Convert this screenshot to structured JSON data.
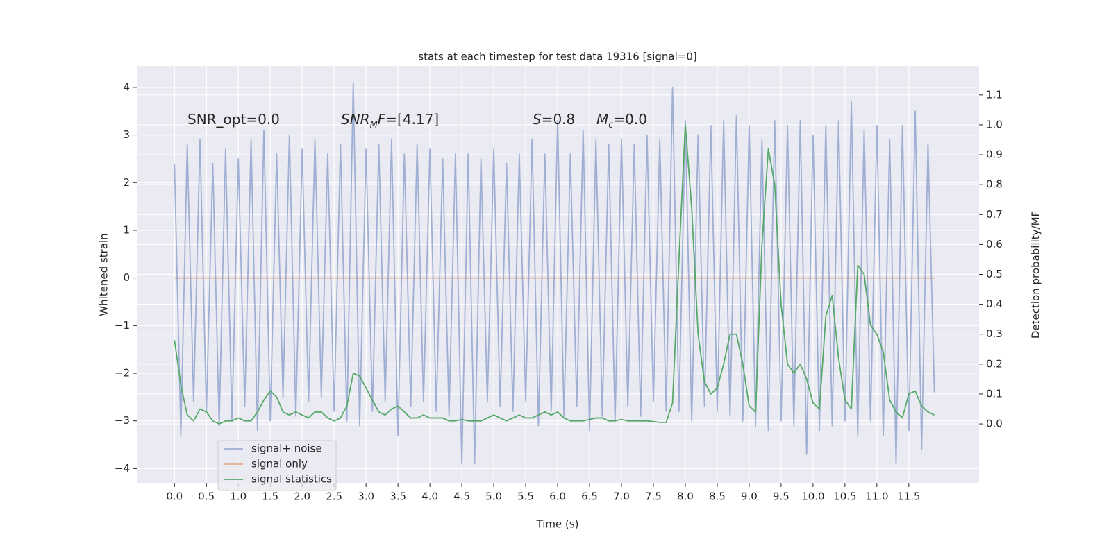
{
  "chart_data": {
    "type": "line",
    "title": "stats at each timestep for test data 19316 [signal=0]",
    "xlabel": "Time (s)",
    "ylabel": "Whitened strain",
    "y2label": "Detection probability/MF",
    "annotations": [
      [
        {
          "text": "SNR_opt=0.0"
        }
      ],
      [
        {
          "text": "SNR",
          "italic": true
        },
        {
          "text": "M",
          "italic": true,
          "sub": true
        },
        {
          "text": "F",
          "italic": true
        },
        {
          "text": "=[4.17]"
        }
      ],
      [
        {
          "text": "S",
          "italic": true
        },
        {
          "text": "=0.8"
        }
      ],
      [
        {
          "text": "M",
          "italic": true
        },
        {
          "text": "c",
          "italic": true,
          "sub": true
        },
        {
          "text": "=0.0"
        }
      ]
    ],
    "x": [
      0.0,
      0.1,
      0.2,
      0.3,
      0.4,
      0.5,
      0.6,
      0.7,
      0.8,
      0.9,
      1.0,
      1.1,
      1.2,
      1.3,
      1.4,
      1.5,
      1.6,
      1.7,
      1.8,
      1.9,
      2.0,
      2.1,
      2.2,
      2.3,
      2.4,
      2.5,
      2.6,
      2.7,
      2.8,
      2.9,
      3.0,
      3.1,
      3.2,
      3.3,
      3.4,
      3.5,
      3.6,
      3.7,
      3.8,
      3.9,
      4.0,
      4.1,
      4.2,
      4.3,
      4.4,
      4.5,
      4.6,
      4.7,
      4.8,
      4.9,
      5.0,
      5.1,
      5.2,
      5.3,
      5.4,
      5.5,
      5.6,
      5.7,
      5.8,
      5.9,
      6.0,
      6.1,
      6.2,
      6.3,
      6.4,
      6.5,
      6.6,
      6.7,
      6.8,
      6.9,
      7.0,
      7.1,
      7.2,
      7.3,
      7.4,
      7.5,
      7.6,
      7.7,
      7.8,
      7.9,
      8.0,
      8.1,
      8.2,
      8.3,
      8.4,
      8.5,
      8.6,
      8.7,
      8.8,
      8.9,
      9.0,
      9.1,
      9.2,
      9.3,
      9.4,
      9.5,
      9.6,
      9.7,
      9.8,
      9.9,
      10.0,
      10.1,
      10.2,
      10.3,
      10.4,
      10.5,
      10.6,
      10.7,
      10.8,
      10.9,
      11.0,
      11.1,
      11.2,
      11.3,
      11.4,
      11.5,
      11.6,
      11.7,
      11.8,
      11.9
    ],
    "series": [
      {
        "name": "signal+ noise",
        "color": "#8c9fca",
        "opacity": 0.8,
        "values": [
          2.4,
          -3.3,
          2.8,
          -2.6,
          2.9,
          -2.8,
          2.4,
          -3.1,
          2.7,
          -3.0,
          2.5,
          -2.7,
          2.9,
          -3.2,
          3.1,
          -3.0,
          2.6,
          -2.5,
          3.0,
          -2.9,
          2.7,
          -2.6,
          2.9,
          -2.5,
          2.6,
          -2.8,
          2.8,
          -3.0,
          4.1,
          -3.1,
          2.7,
          -2.8,
          2.8,
          -2.6,
          2.9,
          -3.3,
          2.6,
          -2.7,
          2.8,
          -2.6,
          2.7,
          -2.8,
          2.5,
          -2.9,
          2.6,
          -3.9,
          2.6,
          -3.9,
          2.5,
          -2.6,
          2.7,
          -2.7,
          2.4,
          -2.8,
          2.6,
          -2.6,
          2.9,
          -3.1,
          2.6,
          -2.8,
          3.3,
          -2.9,
          2.6,
          -2.7,
          3.1,
          -3.2,
          2.9,
          -2.9,
          2.8,
          -3.0,
          2.9,
          -2.7,
          2.8,
          -2.9,
          3.0,
          -2.6,
          2.9,
          -2.8,
          4.0,
          -2.8,
          3.3,
          -3.0,
          3.0,
          -2.7,
          3.2,
          -2.8,
          3.3,
          -2.9,
          3.4,
          -3.0,
          3.2,
          -3.1,
          2.9,
          -3.2,
          3.3,
          -3.0,
          3.2,
          -3.1,
          3.3,
          -3.7,
          3.0,
          -3.2,
          3.2,
          -3.1,
          3.3,
          -3.0,
          3.7,
          -3.3,
          3.1,
          -3.0,
          3.2,
          -3.3,
          2.9,
          -3.9,
          3.2,
          -3.2,
          3.5,
          -3.6,
          2.8,
          -2.4
        ]
      },
      {
        "name": "signal only",
        "color": "#dd8452",
        "opacity": 0.6,
        "values": [
          0,
          0,
          0,
          0,
          0,
          0,
          0,
          0,
          0,
          0,
          0,
          0,
          0,
          0,
          0,
          0,
          0,
          0,
          0,
          0,
          0,
          0,
          0,
          0,
          0,
          0,
          0,
          0,
          0,
          0,
          0,
          0,
          0,
          0,
          0,
          0,
          0,
          0,
          0,
          0,
          0,
          0,
          0,
          0,
          0,
          0,
          0,
          0,
          0,
          0,
          0,
          0,
          0,
          0,
          0,
          0,
          0,
          0,
          0,
          0,
          0,
          0,
          0,
          0,
          0,
          0,
          0,
          0,
          0,
          0,
          0,
          0,
          0,
          0,
          0,
          0,
          0,
          0,
          0,
          0,
          0,
          0,
          0,
          0,
          0,
          0,
          0,
          0,
          0,
          0,
          0,
          0,
          0,
          0,
          0,
          0,
          0,
          0,
          0,
          0,
          0,
          0,
          0,
          0,
          0,
          0,
          0,
          0,
          0,
          0,
          0,
          0,
          0,
          0,
          0,
          0,
          0,
          0,
          0,
          0
        ]
      },
      {
        "name": "signal statistics",
        "color": "#55a868",
        "opacity": 1,
        "axis": "y2",
        "values": [
          0.28,
          0.13,
          0.03,
          0.01,
          0.05,
          0.04,
          0.01,
          0.0,
          0.01,
          0.01,
          0.02,
          0.01,
          0.01,
          0.04,
          0.08,
          0.11,
          0.09,
          0.04,
          0.03,
          0.04,
          0.03,
          0.02,
          0.04,
          0.04,
          0.02,
          0.01,
          0.02,
          0.06,
          0.17,
          0.16,
          0.12,
          0.08,
          0.04,
          0.03,
          0.05,
          0.06,
          0.04,
          0.02,
          0.02,
          0.03,
          0.02,
          0.02,
          0.02,
          0.01,
          0.01,
          0.015,
          0.01,
          0.01,
          0.01,
          0.02,
          0.03,
          0.02,
          0.01,
          0.02,
          0.03,
          0.02,
          0.02,
          0.03,
          0.04,
          0.03,
          0.04,
          0.02,
          0.01,
          0.01,
          0.01,
          0.015,
          0.02,
          0.02,
          0.01,
          0.01,
          0.015,
          0.01,
          0.01,
          0.01,
          0.01,
          0.008,
          0.005,
          0.005,
          0.07,
          0.55,
          1.0,
          0.72,
          0.3,
          0.14,
          0.1,
          0.12,
          0.2,
          0.3,
          0.3,
          0.2,
          0.06,
          0.04,
          0.6,
          0.92,
          0.8,
          0.4,
          0.2,
          0.17,
          0.2,
          0.15,
          0.07,
          0.05,
          0.36,
          0.43,
          0.22,
          0.08,
          0.05,
          0.53,
          0.5,
          0.33,
          0.3,
          0.24,
          0.08,
          0.04,
          0.02,
          0.1,
          0.11,
          0.06,
          0.04,
          0.03
        ]
      }
    ],
    "xlim": [
      -0.59,
      12.6
    ],
    "ylim": [
      -4.3,
      4.45
    ],
    "y2lim": [
      -0.197,
      1.197
    ],
    "xticks": [
      {
        "value": 0,
        "label": "0.0"
      },
      0.5,
      {
        "value": 1,
        "label": "1.0"
      },
      1.5,
      {
        "value": 2,
        "label": "2.0"
      },
      2.5,
      {
        "value": 3,
        "label": "3.0"
      },
      3.5,
      {
        "value": 4,
        "label": "4.0"
      },
      4.5,
      {
        "value": 5,
        "label": "5.0"
      },
      5.5,
      {
        "value": 6,
        "label": "6.0"
      },
      6.5,
      {
        "value": 7,
        "label": "7.0"
      },
      7.5,
      {
        "value": 8,
        "label": "8.0"
      },
      8.5,
      {
        "value": 9,
        "label": "9.0"
      },
      9.5,
      {
        "value": 10,
        "label": "10.0"
      },
      10.5,
      {
        "value": 11,
        "label": "11.0"
      },
      11.5
    ],
    "yticks": [
      {
        "value": -4,
        "label": "−4"
      },
      {
        "value": -3,
        "label": "−3"
      },
      {
        "value": -2,
        "label": "−2"
      },
      {
        "value": -1,
        "label": "−1"
      },
      0,
      1,
      2,
      3,
      4
    ],
    "y2ticks": [
      {
        "value": 0,
        "label": "0.0"
      },
      0.1,
      0.2,
      0.3,
      0.4,
      0.5,
      0.6,
      0.7,
      0.8,
      0.9,
      {
        "value": 1,
        "label": "1.0"
      },
      1.1
    ],
    "grid": true,
    "legend": "lower left"
  }
}
